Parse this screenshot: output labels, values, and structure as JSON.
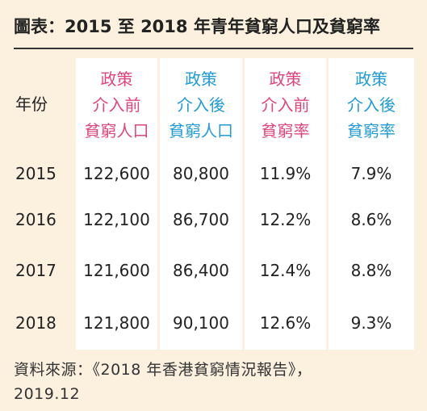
{
  "title": "圖表：2015 至 2018 年青年貧窮人口及貧窮率",
  "table": {
    "year_header": "年份",
    "columns": [
      {
        "lines": [
          "政策",
          "介入前",
          "貧窮人口"
        ],
        "color": "#e0457a"
      },
      {
        "lines": [
          "政策",
          "介入後",
          "貧窮人口"
        ],
        "color": "#1f9bd7"
      },
      {
        "lines": [
          "政策",
          "介入前",
          "貧窮率"
        ],
        "color": "#e0457a"
      },
      {
        "lines": [
          "政策",
          "介入後",
          "貧窮率"
        ],
        "color": "#1f9bd7"
      }
    ],
    "rows": [
      {
        "year": "2015",
        "values": [
          "122,600",
          "80,800",
          "11.9%",
          "7.9%"
        ]
      },
      {
        "year": "2016",
        "values": [
          "122,100",
          "86,700",
          "12.2%",
          "8.6%"
        ]
      },
      {
        "year": "2017",
        "values": [
          "121,600",
          "86,400",
          "12.4%",
          "8.8%"
        ]
      },
      {
        "year": "2018",
        "values": [
          "121,800",
          "90,100",
          "12.6%",
          "9.3%"
        ]
      }
    ]
  },
  "source_line1": "資料來源：《2018 年香港貧窮情況報告》，",
  "source_line2": "2019.12"
}
